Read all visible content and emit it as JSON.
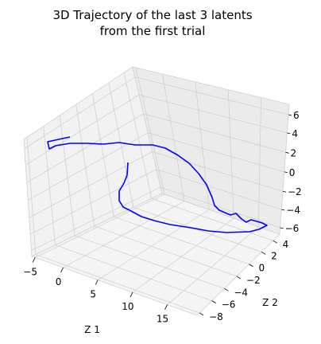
{
  "chart_data": {
    "type": "line",
    "projection": "3d",
    "title_line1": "3D Trajectory of the last 3 latents",
    "title_line2": "from the first trial",
    "xlabel": "Z 1",
    "ylabel": "Z 2",
    "zlabel": "",
    "xlim": [
      -5,
      20
    ],
    "ylim": [
      -8,
      5
    ],
    "zlim": [
      -7,
      7
    ],
    "x_ticks": [
      "−5",
      "0",
      "5",
      "10",
      "15"
    ],
    "y_ticks": [
      "4",
      "2",
      "0",
      "−2",
      "−4",
      "−6",
      "−8"
    ],
    "z_ticks": [
      "6",
      "4",
      "2",
      "0",
      "−2",
      "−4",
      "−6"
    ],
    "grid": true,
    "line_color": "#0000ff",
    "pane_colors": {
      "left": "#f2f2f2",
      "right": "#ebebeb",
      "floor": "#f5f5f5"
    }
  }
}
